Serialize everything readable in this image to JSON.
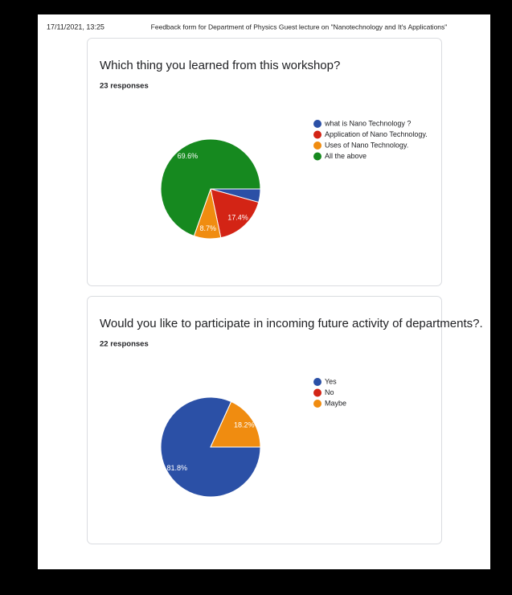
{
  "header": {
    "timestamp": "17/11/2021, 13:25",
    "title": "Feedback form for Department of Physics Guest lecture on \"Nanotechnology and It's Applications\""
  },
  "chart_data": [
    {
      "type": "pie",
      "title": "Which thing you learned from this workshop?",
      "subtitle": "23 responses",
      "categories": [
        "what is Nano Technology ?",
        "Application of Nano Technology.",
        "Uses of Nano Technology.",
        "All the above"
      ],
      "values": [
        4.3,
        17.4,
        8.7,
        69.6
      ],
      "value_labels": [
        null,
        "17.4%",
        "8.7%",
        "69.6%"
      ],
      "colors": [
        "#2b50a6",
        "#d32415",
        "#f08c10",
        "#16891f"
      ]
    },
    {
      "type": "pie",
      "title": "Would you like to participate in incoming future activity of departments?.",
      "subtitle": "22 responses",
      "categories": [
        "Yes",
        "No",
        "Maybe"
      ],
      "values": [
        81.8,
        0,
        18.2
      ],
      "value_labels": [
        "81.8%",
        null,
        "18.2%"
      ],
      "colors": [
        "#2b50a6",
        "#d32415",
        "#f08c10"
      ]
    }
  ]
}
